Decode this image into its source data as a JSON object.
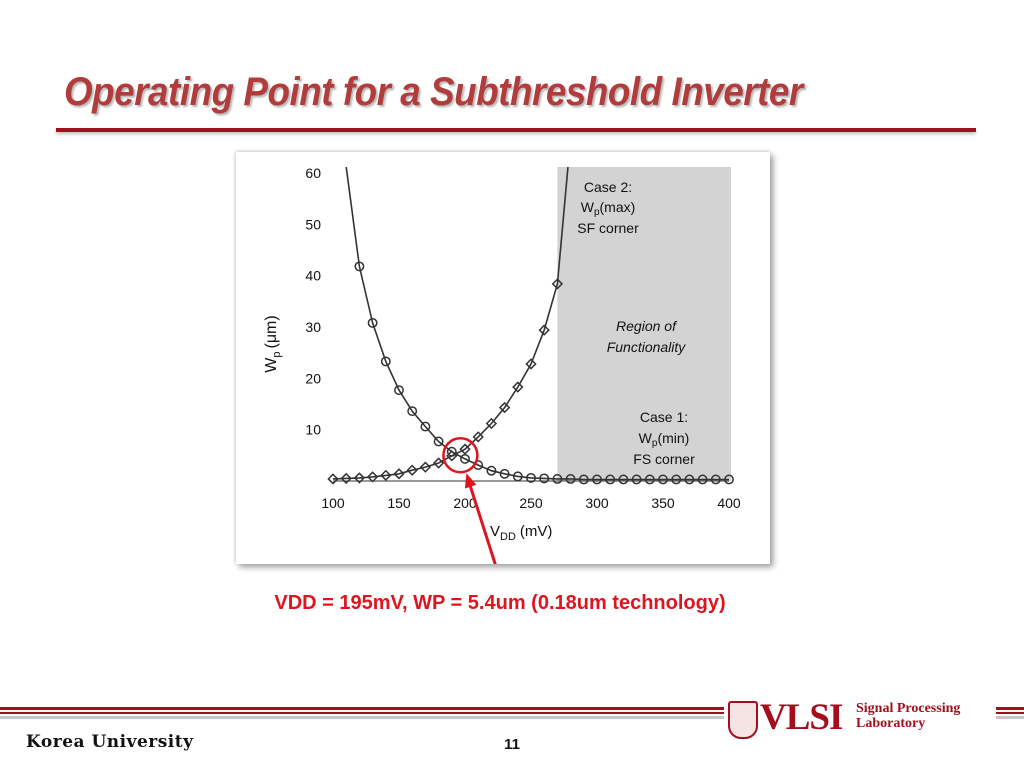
{
  "slide": {
    "title": "Operating Point for a Subthreshold Inverter",
    "annotation": "VDD = 195mV, WP = 5.4um (0.18um technology)",
    "university": "Korea University",
    "page_number": "11",
    "logo": {
      "main": "VLSI",
      "line1": "Signal Processing",
      "line2": "Laboratory"
    }
  },
  "colors": {
    "title": "#b03c3c",
    "accent_line": "#a40f1e",
    "annotation": "#e0141e",
    "region": "#d3d3d3",
    "curve": "#333333"
  },
  "chart_data": {
    "type": "line",
    "xlabel_main": "V",
    "xlabel_sub": "DD",
    "xlabel_unit": "(mV)",
    "ylabel_main": "W",
    "ylabel_sub": "p",
    "ylabel_unit": "(μm)",
    "xlim": [
      100,
      400
    ],
    "ylim": [
      0,
      60
    ],
    "xticks": [
      100,
      150,
      200,
      250,
      300,
      350,
      400
    ],
    "yticks": [
      10,
      20,
      30,
      40,
      50,
      60
    ],
    "grid": false,
    "series": [
      {
        "name": "Case 1: Wp(min), FS corner",
        "marker": "circle",
        "x": [
          120,
          130,
          140,
          150,
          160,
          170,
          180,
          190,
          200,
          210,
          220,
          230,
          240,
          250,
          260,
          270,
          280,
          290,
          300,
          310,
          320,
          330,
          340,
          350,
          360,
          370,
          380,
          390,
          400
        ],
        "y": [
          41.8,
          30.8,
          23.3,
          17.7,
          13.6,
          10.6,
          7.7,
          5.7,
          4.3,
          3.1,
          2.0,
          1.4,
          0.9,
          0.6,
          0.5,
          0.4,
          0.4,
          0.3,
          0.3,
          0.3,
          0.3,
          0.3,
          0.3,
          0.3,
          0.3,
          0.3,
          0.3,
          0.3,
          0.3
        ]
      },
      {
        "name": "Case 2: Wp(max), SF corner",
        "marker": "diamond",
        "x": [
          100,
          110,
          120,
          130,
          140,
          150,
          160,
          170,
          180,
          190,
          200,
          210,
          220,
          230,
          240,
          250,
          260,
          270
        ],
        "y": [
          0.4,
          0.5,
          0.6,
          0.8,
          1.1,
          1.4,
          2.1,
          2.7,
          3.5,
          4.9,
          6.2,
          8.6,
          11.2,
          14.3,
          18.3,
          22.8,
          29.4,
          38.4
        ]
      }
    ],
    "annotations": {
      "case2_title": "Case 2:",
      "case2_w": "W",
      "case2_sub": "p",
      "case2_cond": "(max)",
      "case2_corner": "SF corner",
      "region_line1": "Region of",
      "region_line2": "Functionality",
      "case1_title": "Case 1:",
      "case1_w": "W",
      "case1_sub": "p",
      "case1_cond": "(min)",
      "case1_corner": "FS corner"
    },
    "highlight": {
      "x": 195,
      "y": 5.4
    }
  }
}
